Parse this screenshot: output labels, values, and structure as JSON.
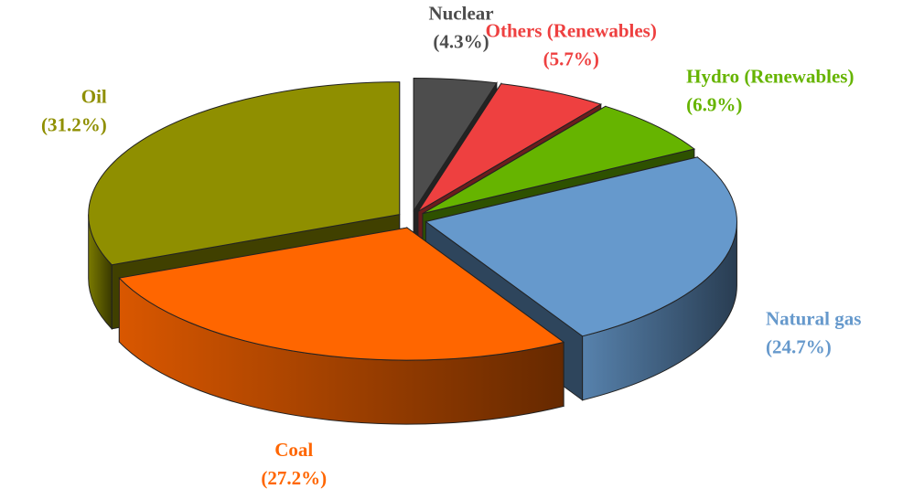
{
  "chart_data": {
    "type": "pie3d",
    "categories": [
      "Nuclear",
      "Others (Renewables)",
      "Hydro (Renewables)",
      "Natural gas",
      "Coal",
      "Oil"
    ],
    "values": [
      4.3,
      5.7,
      6.9,
      24.7,
      27.2,
      31.2
    ],
    "value_labels": [
      "(4.3%)",
      "(5.7%)",
      "(6.9%)",
      "(24.7%)",
      "(27.2%)",
      "(31.2%)"
    ],
    "colors": [
      "#4d4d4d",
      "#ee4040",
      "#66b400",
      "#6699cc",
      "#ff6600",
      "#8f8f00"
    ]
  }
}
